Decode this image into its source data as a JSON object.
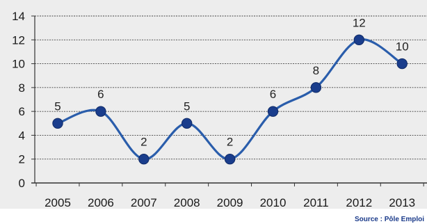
{
  "chart_data": {
    "type": "line",
    "categories": [
      "2005",
      "2006",
      "2007",
      "2008",
      "2009",
      "2010",
      "2011",
      "2012",
      "2013"
    ],
    "series": [
      {
        "values": [
          5,
          6,
          2,
          5,
          2,
          6,
          8,
          12,
          10
        ]
      }
    ],
    "data_labels": [
      "5",
      "6",
      "2",
      "5",
      "2",
      "6",
      "8",
      "12",
      "10"
    ],
    "ylim": [
      0,
      14
    ],
    "yticks": [
      "0",
      "2",
      "4",
      "6",
      "8",
      "10",
      "12",
      "14"
    ],
    "grid": true,
    "source": "Source : Pôle Emploi",
    "colors": {
      "line": "#2a5dab",
      "marker": "#1a3d8c",
      "grid": "#444444",
      "plot_background": "#ededed"
    }
  }
}
